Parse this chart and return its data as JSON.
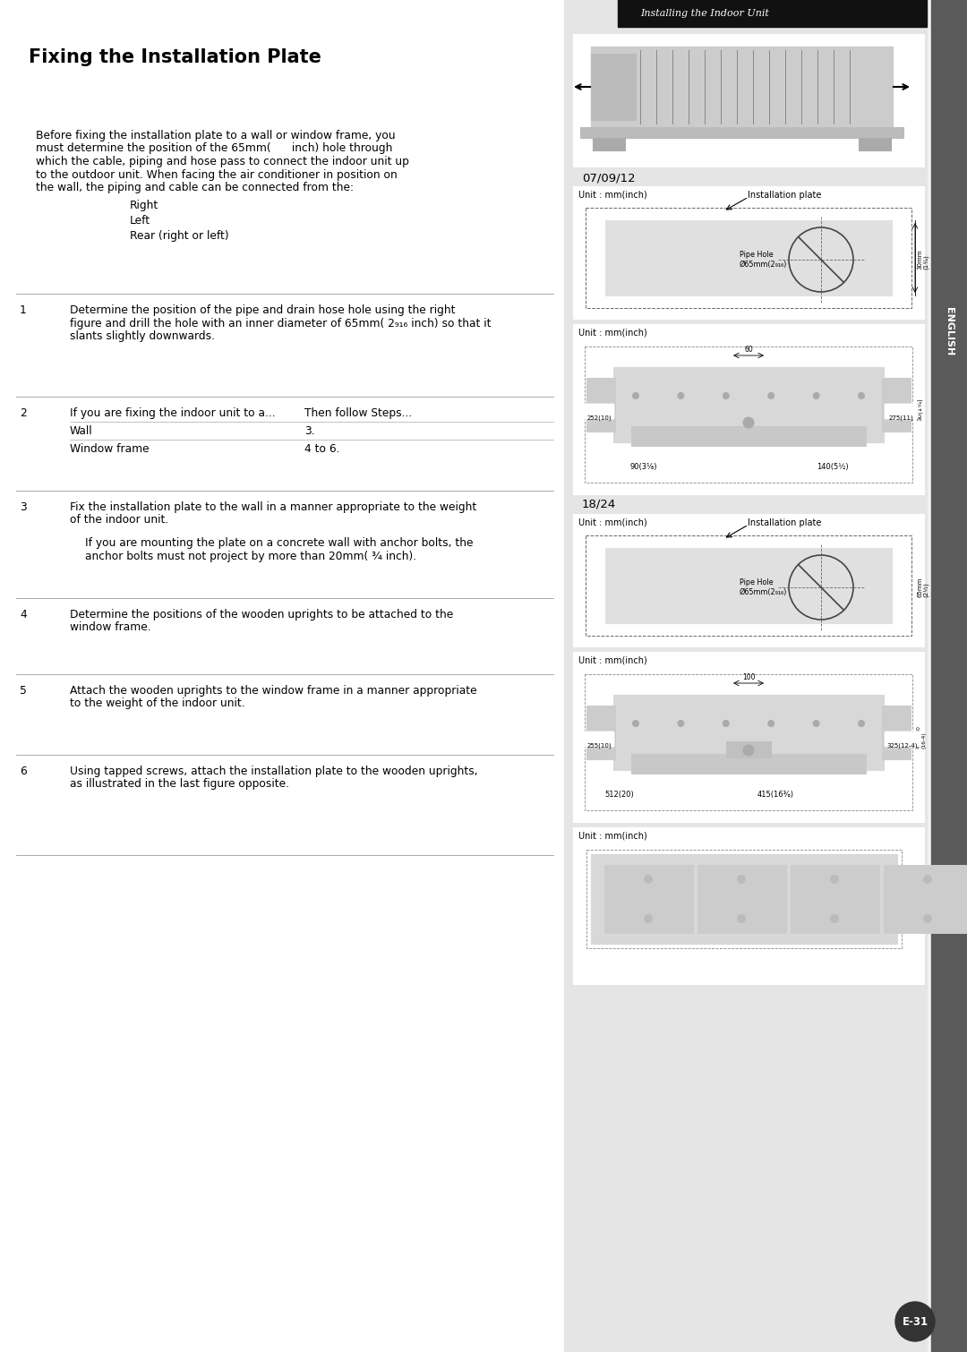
{
  "title": "Fixing the Installation Plate",
  "header_text": "Installing the Indoor Unit",
  "bg_color": "#f2f2f2",
  "left_bg": "#ffffff",
  "right_bg": "#e8e8e8",
  "tab_bg": "#5a5a5a",
  "header_bg": "#111111",
  "tab_text": "ENGLISH",
  "page_num": "E-31",
  "label_0709": "07/09/12",
  "label_1824": "18/24",
  "unit_label": "Unit : mm(inch)",
  "inst_plate_label": "Installation plate",
  "pipe_hole_label": "Pipe Hole\nØ65mm(2₉₁₆)",
  "intro_lines": [
    "Before fixing the installation plate to a wall or window frame, you",
    "must determine the position of the 65mm(      inch) hole through",
    "which the cable, piping and hose pass to connect the indoor unit up",
    "to the outdoor unit. When facing the air conditioner in position on",
    "the wall, the piping and cable can be connected from the:"
  ],
  "bullets": [
    "Right",
    "Left",
    "Rear (right or left)"
  ],
  "step1_lines": [
    "Determine the position of the pipe and drain hose hole using the right",
    "figure and drill the hole with an inner diameter of 65mm( 2₉₁₆ inch) so that it",
    "slants slightly downwards."
  ],
  "step2_hdr": "If you are fixing the indoor unit to a...",
  "step2_hdr2": "Then follow Steps...",
  "step2_row1": [
    "Wall",
    "3."
  ],
  "step2_row2": [
    "Window frame",
    "4 to 6."
  ],
  "step3_lines": [
    "Fix the installation plate to the wall in a manner appropriate to the weight",
    "of the indoor unit."
  ],
  "step3_sub": [
    "If you are mounting the plate on a concrete wall with anchor bolts, the",
    "anchor bolts must not project by more than 20mm( ¾ inch)."
  ],
  "step4_lines": [
    "Determine the positions of the wooden uprights to be attached to the",
    "window frame."
  ],
  "step5_lines": [
    "Attach the wooden uprights to the window frame in a manner appropriate",
    "to the weight of the indoor unit."
  ],
  "step6_lines": [
    "Using tapped screws, attach the installation plate to the wooden uprights,",
    "as illustrated in the last figure opposite."
  ]
}
